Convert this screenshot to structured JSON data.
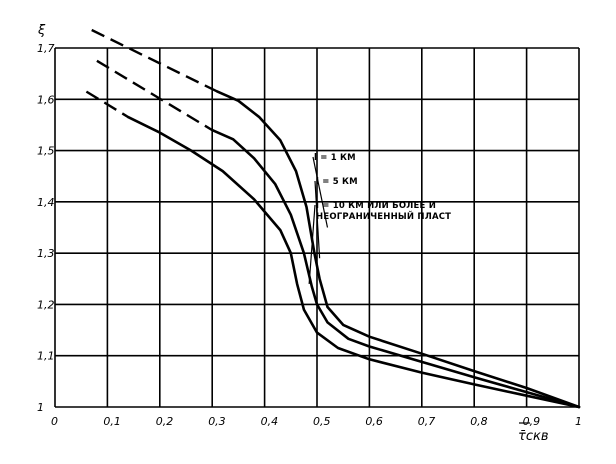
{
  "chart_data": {
    "type": "line",
    "title": "",
    "xlabel": "τ̄скв",
    "ylabel": "ξ",
    "xlim": [
      0,
      1
    ],
    "ylim": [
      1,
      1.7
    ],
    "grid": true,
    "x_tick_labels": [
      "0",
      "0,1",
      "0,2",
      "0,3",
      "0,4",
      "0,5",
      "0,6",
      "0,7",
      "0,8",
      "0,9",
      "1"
    ],
    "y_tick_labels": [
      "1",
      "1,1",
      "1,2",
      "1,3",
      "1,4",
      "1,5",
      "1,6",
      "1,7"
    ],
    "series": [
      {
        "name": "l = 1 КМ",
        "dashed_part": [
          [
            0.07,
            1.735
          ],
          [
            0.31,
            1.615
          ]
        ],
        "solid_part": [
          [
            0.31,
            1.615
          ],
          [
            0.35,
            1.597
          ],
          [
            0.39,
            1.565
          ],
          [
            0.43,
            1.52
          ],
          [
            0.46,
            1.46
          ],
          [
            0.48,
            1.39
          ],
          [
            0.495,
            1.3
          ],
          [
            0.505,
            1.25
          ],
          [
            0.52,
            1.195
          ],
          [
            0.55,
            1.16
          ],
          [
            0.6,
            1.137
          ],
          [
            0.7,
            1.104
          ],
          [
            0.8,
            1.07
          ],
          [
            0.9,
            1.037
          ],
          [
            1.0,
            1.0
          ]
        ]
      },
      {
        "name": "l = 5 КМ",
        "dashed_part": [
          [
            0.08,
            1.675
          ],
          [
            0.3,
            1.54
          ]
        ],
        "solid_part": [
          [
            0.3,
            1.54
          ],
          [
            0.34,
            1.522
          ],
          [
            0.38,
            1.485
          ],
          [
            0.42,
            1.435
          ],
          [
            0.45,
            1.375
          ],
          [
            0.475,
            1.3
          ],
          [
            0.49,
            1.235
          ],
          [
            0.5,
            1.2
          ],
          [
            0.52,
            1.165
          ],
          [
            0.56,
            1.133
          ],
          [
            0.6,
            1.118
          ],
          [
            0.7,
            1.088
          ],
          [
            0.8,
            1.058
          ],
          [
            0.9,
            1.029
          ],
          [
            1.0,
            1.0
          ]
        ]
      },
      {
        "name": "l = 10 КМ ИЛИ БОЛЕЕ И НЕОГРАНИЧЕННЫЙ ПЛАСТ",
        "dashed_part": [
          [
            0.06,
            1.615
          ],
          [
            0.14,
            1.565
          ]
        ],
        "solid_part": [
          [
            0.14,
            1.565
          ],
          [
            0.2,
            1.535
          ],
          [
            0.26,
            1.5
          ],
          [
            0.32,
            1.46
          ],
          [
            0.38,
            1.405
          ],
          [
            0.43,
            1.345
          ],
          [
            0.45,
            1.3
          ],
          [
            0.462,
            1.24
          ],
          [
            0.475,
            1.19
          ],
          [
            0.5,
            1.145
          ],
          [
            0.54,
            1.115
          ],
          [
            0.6,
            1.093
          ],
          [
            0.7,
            1.067
          ],
          [
            0.8,
            1.044
          ],
          [
            0.9,
            1.022
          ],
          [
            1.0,
            1.0
          ]
        ]
      }
    ],
    "annotations": [
      {
        "text": "l = 1 КМ",
        "point": [
          0.52,
          1.35
        ]
      },
      {
        "text": "l = 5 КМ",
        "point": [
          0.505,
          1.29
        ]
      },
      {
        "text": "l = 10 КМ ИЛИ БОЛЕЕ И",
        "point": [
          0.485,
          1.24
        ]
      },
      {
        "text": "НЕОГРАНИЧЕННЫЙ ПЛАСТ",
        "point": null
      }
    ]
  }
}
